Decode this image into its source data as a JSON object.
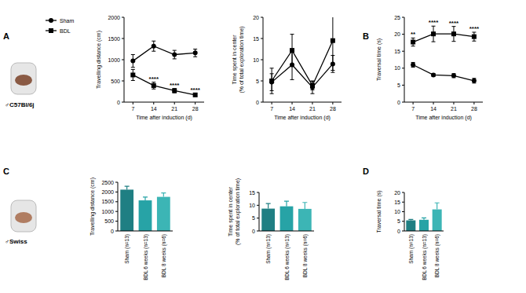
{
  "panel_labels": [
    "A",
    "B",
    "C",
    "D"
  ],
  "strains": [
    "♂C57Bl/6j",
    "♂Swiss"
  ],
  "chart_data": [
    {
      "type": "line",
      "y_label": "Travelling distance (cm)",
      "x_label": "Time after induction (d)",
      "x": [
        7,
        14,
        21,
        28
      ],
      "xlim": [
        4,
        31
      ],
      "xticks": [
        7,
        14,
        21,
        28
      ],
      "ylim": [
        0,
        2000
      ],
      "yticks": [
        0,
        500,
        1000,
        1500,
        2000
      ],
      "legend": "left",
      "series": [
        {
          "name": "Sham",
          "color": "#000000",
          "marker": "circle",
          "values": [
            970,
            1320,
            1120,
            1160
          ],
          "errors": [
            150,
            120,
            100,
            90
          ]
        },
        {
          "name": "BDL",
          "color": "#000000",
          "marker": "square",
          "values": [
            640,
            390,
            270,
            170
          ],
          "errors": [
            130,
            80,
            50,
            30
          ]
        }
      ],
      "annotations": [
        {
          "x": 14,
          "text": "****",
          "series": "BDL"
        },
        {
          "x": 21,
          "text": "****",
          "series": "BDL"
        },
        {
          "x": 28,
          "text": "****",
          "series": "BDL"
        }
      ]
    },
    {
      "type": "line",
      "y_label": "Time spent in center\n(% of total exploration time)",
      "x_label": "Time after induction (d)",
      "x": [
        7,
        14,
        21,
        28
      ],
      "xlim": [
        4,
        31
      ],
      "xticks": [
        7,
        14,
        21,
        28
      ],
      "ylim": [
        0,
        20
      ],
      "yticks": [
        0,
        5,
        10,
        15,
        20
      ],
      "legend": false,
      "series": [
        {
          "name": "Sham",
          "color": "#000000",
          "marker": "circle",
          "values": [
            4.7,
            8.8,
            3.5,
            9
          ],
          "errors": [
            2,
            3.5,
            1.5,
            2
          ]
        },
        {
          "name": "BDL",
          "color": "#000000",
          "marker": "square",
          "values": [
            5,
            12.2,
            3.9,
            14.5
          ],
          "errors": [
            3,
            3.8,
            1,
            7
          ]
        }
      ]
    },
    {
      "type": "line",
      "y_label": "Traversal time (s)",
      "x_label": "Time after induction (d)",
      "x": [
        7,
        14,
        21,
        28
      ],
      "xlim": [
        4,
        31
      ],
      "xticks": [
        7,
        14,
        21,
        28
      ],
      "ylim": [
        0,
        25
      ],
      "yticks": [
        0,
        5,
        10,
        15,
        20,
        25
      ],
      "legend": false,
      "series": [
        {
          "name": "Sham",
          "color": "#000000",
          "marker": "circle",
          "values": [
            11,
            8,
            7.8,
            6.3
          ],
          "errors": [
            0.7,
            0.4,
            0.6,
            0.7
          ]
        },
        {
          "name": "BDL",
          "color": "#000000",
          "marker": "square",
          "values": [
            17.7,
            20.1,
            20.1,
            19.3
          ],
          "errors": [
            1.2,
            2.3,
            2.2,
            1.3
          ]
        }
      ],
      "annotations": [
        {
          "x": 7,
          "text": "**",
          "series": "BDL"
        },
        {
          "x": 14,
          "text": "****",
          "series": "BDL"
        },
        {
          "x": 21,
          "text": "****",
          "series": "BDL"
        },
        {
          "x": 28,
          "text": "****",
          "series": "BDL"
        }
      ]
    },
    {
      "type": "bar",
      "y_label": "Travelling distance (cm)",
      "categories": [
        "Sham (n=13)",
        "BDL 6 weeks (n=13)",
        "BDL 8 weeks (n=6)"
      ],
      "values": [
        2120,
        1570,
        1750
      ],
      "errors": [
        170,
        170,
        200
      ],
      "colors": [
        "#1f7f83",
        "#27a3a6",
        "#3cb5b5"
      ],
      "ylim": [
        0,
        2500
      ],
      "yticks": [
        0,
        500,
        1000,
        1500,
        2000,
        2500
      ]
    },
    {
      "type": "bar",
      "y_label": "Time spent in center\n(% of total exploration time)",
      "categories": [
        "Sham (n=13)",
        "BDL 6 weeks (n=13)",
        "BDL 8 weeks (n=6)"
      ],
      "values": [
        8.7,
        9.6,
        8.6
      ],
      "errors": [
        2,
        2,
        2.5
      ],
      "colors": [
        "#1f7f83",
        "#27a3a6",
        "#3cb5b5"
      ],
      "ylim": [
        0,
        15
      ],
      "yticks": [
        0,
        5,
        10,
        15
      ]
    },
    {
      "type": "bar",
      "y_label": "Traversal time (s)",
      "categories": [
        "Sham (n=13)",
        "BDL 6 weeks (n=13)",
        "BDL 8 weeks (n=6)"
      ],
      "values": [
        5.5,
        5.8,
        11.2
      ],
      "errors": [
        0.5,
        1,
        3.4
      ],
      "colors": [
        "#1f7f83",
        "#27a3a6",
        "#3cb5b5"
      ],
      "ylim": [
        0,
        20
      ],
      "yticks": [
        0,
        5,
        10,
        15,
        20
      ]
    }
  ]
}
